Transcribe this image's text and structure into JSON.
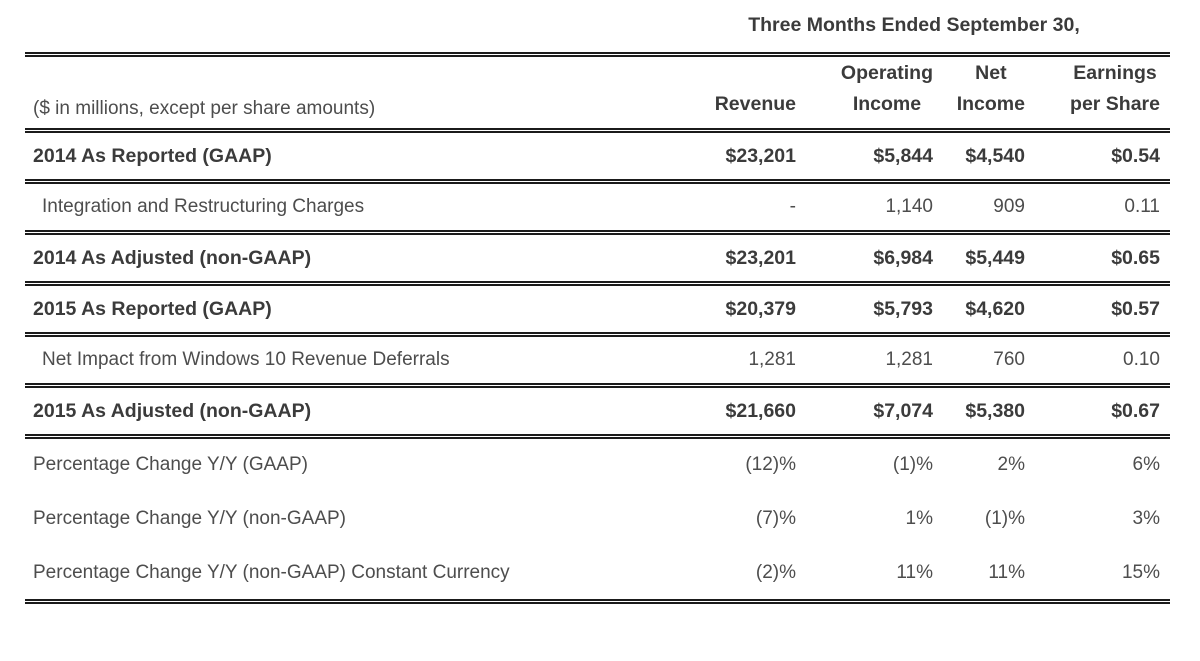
{
  "table": {
    "period_header": "Three Months Ended September 30,",
    "row_label_note": "($ in millions, except per share amounts)",
    "columns": [
      [
        "Revenue"
      ],
      [
        "Operating",
        "Income"
      ],
      [
        "Net",
        "Income"
      ],
      [
        "Earnings",
        "per Share"
      ]
    ],
    "rows": [
      {
        "label": "2014 As Reported (GAAP)",
        "revenue": "$23,201",
        "operating_income": "$5,844",
        "net_income": "$4,540",
        "eps": "$0.54"
      },
      {
        "label": "Integration and Restructuring Charges",
        "revenue": "-",
        "operating_income": "1,140",
        "net_income": "909",
        "eps": "0.11"
      },
      {
        "label": "2014 As Adjusted (non-GAAP)",
        "revenue": "$23,201",
        "operating_income": "$6,984",
        "net_income": "$5,449",
        "eps": "$0.65"
      },
      {
        "label": "2015 As Reported (GAAP)",
        "revenue": "$20,379",
        "operating_income": "$5,793",
        "net_income": "$4,620",
        "eps": "$0.57"
      },
      {
        "label": "Net Impact from Windows 10 Revenue Deferrals",
        "revenue": "1,281",
        "operating_income": "1,281",
        "net_income": "760",
        "eps": "0.10"
      },
      {
        "label": "2015 As Adjusted (non-GAAP)",
        "revenue": "$21,660",
        "operating_income": "$7,074",
        "net_income": "$5,380",
        "eps": "$0.67"
      },
      {
        "label": "Percentage Change Y/Y (GAAP)",
        "revenue": "(12)%",
        "operating_income": "(1)%",
        "net_income": "2%",
        "eps": "6%"
      },
      {
        "label": "Percentage Change Y/Y (non-GAAP)",
        "revenue": "(7)%",
        "operating_income": "1%",
        "net_income": "(1)%",
        "eps": "3%"
      },
      {
        "label": "Percentage Change Y/Y (non-GAAP) Constant Currency",
        "revenue": "(2)%",
        "operating_income": "11%",
        "net_income": "11%",
        "eps": "15%"
      }
    ]
  }
}
